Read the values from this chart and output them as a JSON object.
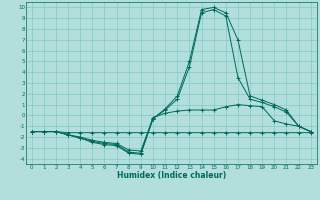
{
  "title": "",
  "xlabel": "Humidex (Indice chaleur)",
  "bg_color": "#b2dfdb",
  "grid_color": "#80cbc4",
  "line_color": "#00695c",
  "marker": "+",
  "xlim": [
    -0.5,
    23.5
  ],
  "ylim": [
    -4.5,
    10.5
  ],
  "xticks": [
    0,
    1,
    2,
    3,
    4,
    5,
    6,
    7,
    8,
    9,
    10,
    11,
    12,
    13,
    14,
    15,
    16,
    17,
    18,
    19,
    20,
    21,
    22,
    23
  ],
  "yticks": [
    -4,
    -3,
    -2,
    -1,
    0,
    1,
    2,
    3,
    4,
    5,
    6,
    7,
    8,
    9,
    10
  ],
  "curves": [
    {
      "x": [
        0,
        1,
        2,
        3,
        4,
        5,
        6,
        7,
        8,
        9,
        10,
        11,
        12,
        13,
        14,
        15,
        16,
        17,
        18,
        19,
        20,
        21,
        22,
        23
      ],
      "y": [
        -1.5,
        -1.5,
        -1.5,
        -1.6,
        -1.6,
        -1.6,
        -1.6,
        -1.6,
        -1.6,
        -1.6,
        -1.6,
        -1.6,
        -1.6,
        -1.6,
        -1.6,
        -1.6,
        -1.6,
        -1.6,
        -1.6,
        -1.6,
        -1.6,
        -1.6,
        -1.6,
        -1.6
      ]
    },
    {
      "x": [
        0,
        1,
        2,
        3,
        4,
        5,
        6,
        7,
        8,
        9,
        10,
        11,
        12,
        13,
        14,
        15,
        16,
        17,
        18,
        19,
        20,
        21,
        22,
        23
      ],
      "y": [
        -1.5,
        -1.5,
        -1.5,
        -1.8,
        -2.0,
        -2.3,
        -2.5,
        -2.6,
        -3.2,
        -3.3,
        -0.2,
        0.2,
        0.4,
        0.5,
        0.5,
        0.5,
        0.8,
        1.0,
        0.9,
        0.8,
        -0.5,
        -0.8,
        -1.0,
        -1.5
      ]
    },
    {
      "x": [
        0,
        1,
        2,
        3,
        4,
        5,
        6,
        7,
        8,
        9,
        10,
        11,
        12,
        13,
        14,
        15,
        16,
        17,
        18,
        19,
        20,
        21,
        22,
        23
      ],
      "y": [
        -1.5,
        -1.5,
        -1.5,
        -1.8,
        -2.1,
        -2.4,
        -2.6,
        -2.7,
        -3.4,
        -3.5,
        -0.3,
        0.5,
        1.5,
        4.5,
        9.5,
        9.8,
        9.2,
        3.5,
        1.5,
        1.2,
        0.8,
        0.3,
        -1.0,
        -1.5
      ]
    },
    {
      "x": [
        0,
        1,
        2,
        3,
        4,
        5,
        6,
        7,
        8,
        9,
        10,
        11,
        12,
        13,
        14,
        15,
        16,
        17,
        18,
        19,
        20,
        21,
        22,
        23
      ],
      "y": [
        -1.5,
        -1.5,
        -1.5,
        -1.8,
        -2.1,
        -2.5,
        -2.7,
        -2.8,
        -3.5,
        -3.6,
        -0.3,
        0.6,
        1.8,
        5.0,
        9.8,
        10.0,
        9.5,
        7.0,
        1.8,
        1.4,
        1.0,
        0.5,
        -1.0,
        -1.5
      ]
    }
  ]
}
